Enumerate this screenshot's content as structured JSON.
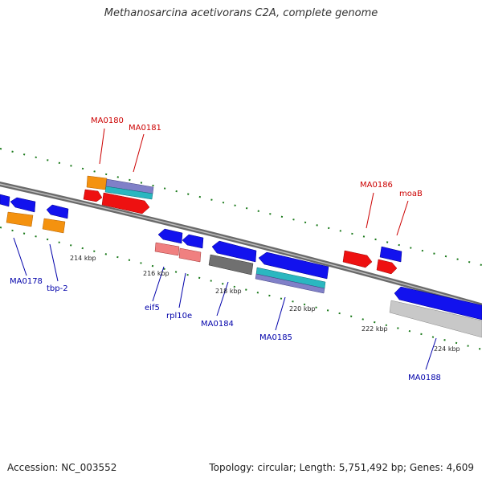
{
  "title": "Methanosarcina acetivorans C2A, complete genome",
  "footer": {
    "accession": "Accession: NC_003552",
    "stats": "Topology: circular; Length: 5,751,492 bp; Genes: 4,609"
  },
  "colors": {
    "backbone": "#7a7a7a",
    "tick": "#1b7a1b",
    "label_forward": "#cc0000",
    "label_reverse": "#0000aa",
    "gene_blue": "#1212ee",
    "gene_red": "#ee1111",
    "gene_orange": "#f4920f",
    "gene_pink": "#f08080",
    "gene_gray": "#707070",
    "gene_lightgray": "#c8c8c8",
    "gene_teal": "#2ab7c0",
    "gene_purple": "#8080c8"
  },
  "ticks": [
    {
      "label": "214 kbp"
    },
    {
      "label": "216 kbp"
    },
    {
      "label": "218 kbp"
    },
    {
      "label": "220 kbp"
    },
    {
      "label": "222 kbp"
    },
    {
      "label": "224 kbp"
    }
  ],
  "gene_labels": [
    {
      "name": "MA0180",
      "strand": "forward"
    },
    {
      "name": "MA0181",
      "strand": "forward"
    },
    {
      "name": "MA0186",
      "strand": "forward"
    },
    {
      "name": "moaB",
      "strand": "forward"
    },
    {
      "name": "MA0178",
      "strand": "reverse"
    },
    {
      "name": "tbp-2",
      "strand": "reverse"
    },
    {
      "name": "eif5",
      "strand": "reverse"
    },
    {
      "name": "rpl10e",
      "strand": "reverse"
    },
    {
      "name": "MA0184",
      "strand": "reverse"
    },
    {
      "name": "MA0185",
      "strand": "reverse"
    },
    {
      "name": "MA0188",
      "strand": "reverse"
    }
  ]
}
